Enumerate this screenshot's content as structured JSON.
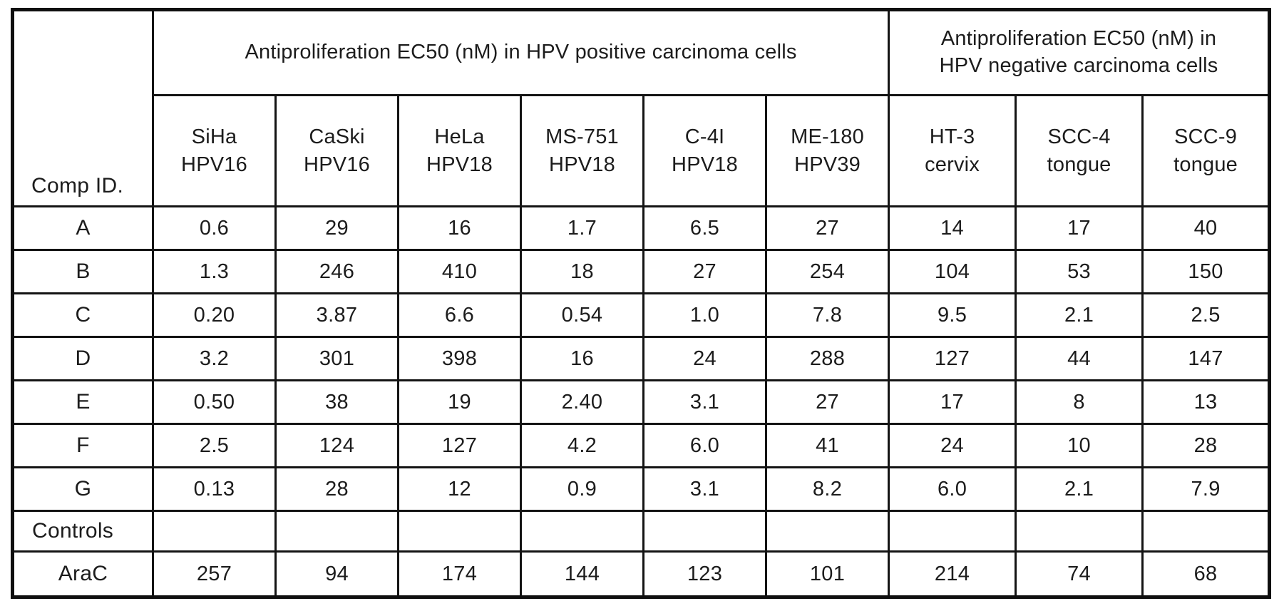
{
  "table": {
    "corner_label": "Comp ID.",
    "group_headers": [
      {
        "label": "Antiproliferation EC50 (nM) in HPV positive carcinoma cells",
        "colspan": 6
      },
      {
        "label": "Antiproliferation EC50 (nM) in HPV negative carcinoma cells",
        "colspan": 3
      }
    ],
    "column_headers": [
      {
        "line1": "SiHa",
        "line2": "HPV16"
      },
      {
        "line1": "CaSki",
        "line2": "HPV16"
      },
      {
        "line1": "HeLa",
        "line2": "HPV18"
      },
      {
        "line1": "MS-751",
        "line2": "HPV18"
      },
      {
        "line1": "C-4I",
        "line2": "HPV18"
      },
      {
        "line1": "ME-180",
        "line2": "HPV39"
      },
      {
        "line1": "HT-3",
        "line2": "cervix"
      },
      {
        "line1": "SCC-4",
        "line2": "tongue"
      },
      {
        "line1": "SCC-9",
        "line2": "tongue"
      }
    ],
    "rows": [
      {
        "label": "A",
        "label_align": "center",
        "values": [
          "0.6",
          "29",
          "16",
          "1.7",
          "6.5",
          "27",
          "14",
          "17",
          "40"
        ]
      },
      {
        "label": "B",
        "label_align": "center",
        "values": [
          "1.3",
          "246",
          "410",
          "18",
          "27",
          "254",
          "104",
          "53",
          "150"
        ]
      },
      {
        "label": "C",
        "label_align": "center",
        "values": [
          "0.20",
          "3.87",
          "6.6",
          "0.54",
          "1.0",
          "7.8",
          "9.5",
          "2.1",
          "2.5"
        ]
      },
      {
        "label": "D",
        "label_align": "center",
        "values": [
          "3.2",
          "301",
          "398",
          "16",
          "24",
          "288",
          "127",
          "44",
          "147"
        ]
      },
      {
        "label": "E",
        "label_align": "center",
        "values": [
          "0.50",
          "38",
          "19",
          "2.40",
          "3.1",
          "27",
          "17",
          "8",
          "13"
        ]
      },
      {
        "label": "F",
        "label_align": "center",
        "values": [
          "2.5",
          "124",
          "127",
          "4.2",
          "6.0",
          "41",
          "24",
          "10",
          "28"
        ]
      },
      {
        "label": "G",
        "label_align": "center",
        "values": [
          "0.13",
          "28",
          "12",
          "0.9",
          "3.1",
          "8.2",
          "6.0",
          "2.1",
          "7.9"
        ]
      },
      {
        "label": "Controls",
        "label_align": "left",
        "values": [
          "",
          "",
          "",
          "",
          "",
          "",
          "",
          "",
          ""
        ]
      },
      {
        "label": "AraC",
        "label_align": "center",
        "values": [
          "257",
          "94",
          "174",
          "144",
          "123",
          "101",
          "214",
          "74",
          "68"
        ]
      }
    ],
    "colors": {
      "ink": "#1c1c1c",
      "border": "#141414",
      "background": "#ffffff"
    }
  }
}
